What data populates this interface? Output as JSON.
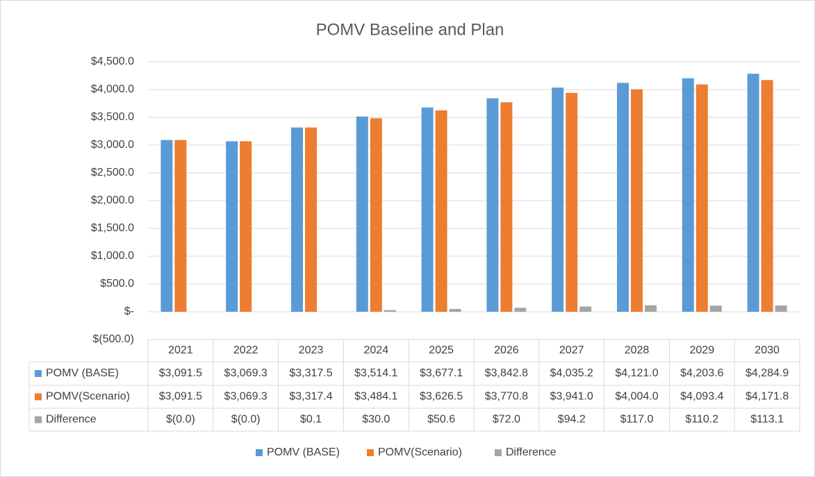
{
  "chart_data": {
    "type": "bar",
    "title": "POMV Baseline and Plan",
    "categories": [
      "2021",
      "2022",
      "2023",
      "2024",
      "2025",
      "2026",
      "2027",
      "2028",
      "2029",
      "2030"
    ],
    "series": [
      {
        "name": "POMV (BASE)",
        "color": "#5b9bd5",
        "values": [
          3091.5,
          3069.3,
          3317.5,
          3514.1,
          3677.1,
          3842.8,
          4035.2,
          4121.0,
          4203.6,
          4284.9
        ],
        "value_labels": [
          "$3,091.5",
          "$3,069.3",
          "$3,317.5",
          "$3,514.1",
          "$3,677.1",
          "$3,842.8",
          "$4,035.2",
          "$4,121.0",
          "$4,203.6",
          "$4,284.9"
        ]
      },
      {
        "name": "POMV(Scenario)",
        "color": "#ed7d31",
        "values": [
          3091.5,
          3069.3,
          3317.4,
          3484.1,
          3626.5,
          3770.8,
          3941.0,
          4004.0,
          4093.4,
          4171.8
        ],
        "value_labels": [
          "$3,091.5",
          "$3,069.3",
          "$3,317.4",
          "$3,484.1",
          "$3,626.5",
          "$3,770.8",
          "$3,941.0",
          "$4,004.0",
          "$4,093.4",
          "$4,171.8"
        ]
      },
      {
        "name": "Difference",
        "color": "#a5a5a5",
        "values": [
          -0.0,
          -0.0,
          0.1,
          30.0,
          50.6,
          72.0,
          94.2,
          117.0,
          110.2,
          113.1
        ],
        "value_labels": [
          "$(0.0)",
          "$(0.0)",
          "$0.1",
          "$30.0",
          "$50.6",
          "$72.0",
          "$94.2",
          "$117.0",
          "$110.2",
          "$113.1"
        ]
      }
    ],
    "ylim": [
      -500,
      4500
    ],
    "yticks": [
      {
        "value": -500,
        "label": "$(500.0)"
      },
      {
        "value": 0,
        "label": "$-"
      },
      {
        "value": 500,
        "label": "$500.0"
      },
      {
        "value": 1000,
        "label": "$1,000.0"
      },
      {
        "value": 1500,
        "label": "$1,500.0"
      },
      {
        "value": 2000,
        "label": "$2,000.0"
      },
      {
        "value": 2500,
        "label": "$2,500.0"
      },
      {
        "value": 3000,
        "label": "$3,000.0"
      },
      {
        "value": 3500,
        "label": "$3,500.0"
      },
      {
        "value": 4000,
        "label": "$4,000.0"
      },
      {
        "value": 4500,
        "label": "$4,500.0"
      }
    ],
    "grid": true,
    "legend": "bottom"
  }
}
